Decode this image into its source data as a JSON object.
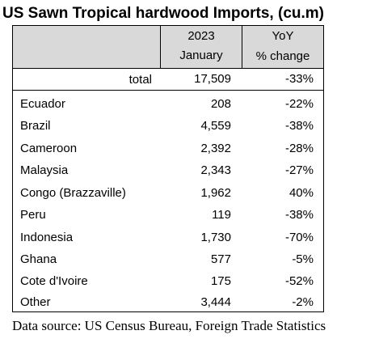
{
  "title": "US Sawn Tropical hardwood Imports, (cu.m)",
  "header": {
    "col2_line1": "2023",
    "col2_line2": "January",
    "col3_line1": "YoY",
    "col3_line2": "% change"
  },
  "total": {
    "label": "total",
    "value": "17,509",
    "change": "-33%"
  },
  "rows": [
    {
      "country": "Ecuador",
      "value": "208",
      "change": "-22%"
    },
    {
      "country": "Brazil",
      "value": "4,559",
      "change": "-38%"
    },
    {
      "country": "Cameroon",
      "value": "2,392",
      "change": "-28%"
    },
    {
      "country": "Malaysia",
      "value": "2,343",
      "change": "-27%"
    },
    {
      "country": "Congo (Brazzaville)",
      "value": "1,962",
      "change": "40%"
    },
    {
      "country": "Peru",
      "value": "119",
      "change": "-38%"
    },
    {
      "country": "Indonesia",
      "value": "1,730",
      "change": "-70%"
    },
    {
      "country": "Ghana",
      "value": "577",
      "change": "-5%"
    },
    {
      "country": "Cote d'Ivoire",
      "value": "175",
      "change": "-52%"
    },
    {
      "country": "Other",
      "value": "3,444",
      "change": "-2%"
    }
  ],
  "source": "Data source: US Census Bureau, Foreign Trade Statistics"
}
